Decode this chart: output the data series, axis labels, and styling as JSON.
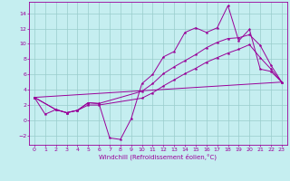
{
  "xlabel": "Windchill (Refroidissement éolien,°C)",
  "xlim": [
    -0.5,
    23.5
  ],
  "ylim": [
    -3.2,
    15.5
  ],
  "xticks": [
    0,
    1,
    2,
    3,
    4,
    5,
    6,
    7,
    8,
    9,
    10,
    11,
    12,
    13,
    14,
    15,
    16,
    17,
    18,
    19,
    20,
    21,
    22,
    23
  ],
  "yticks": [
    -2,
    0,
    2,
    4,
    6,
    8,
    10,
    12,
    14
  ],
  "background_color": "#c5eef0",
  "line_color": "#990099",
  "grid_color": "#99cccc",
  "line1_x": [
    0,
    1,
    2,
    3,
    4,
    5,
    6,
    7,
    8,
    9,
    10,
    11,
    12,
    13,
    14,
    15,
    16,
    17,
    18,
    19,
    20,
    21,
    22,
    23
  ],
  "line1_y": [
    3.0,
    0.8,
    1.4,
    1.0,
    1.3,
    2.3,
    2.2,
    -2.3,
    -2.5,
    0.2,
    4.8,
    6.0,
    8.3,
    9.0,
    11.5,
    12.1,
    11.5,
    12.1,
    15.0,
    10.4,
    11.9,
    6.7,
    6.4,
    5.0
  ],
  "line2_x": [
    0,
    2,
    3,
    4,
    5,
    6,
    10,
    11,
    12,
    13,
    14,
    15,
    16,
    17,
    18,
    19,
    20,
    21,
    22,
    23
  ],
  "line2_y": [
    3.0,
    1.4,
    1.0,
    1.3,
    2.3,
    2.2,
    3.8,
    4.8,
    6.1,
    7.0,
    7.8,
    8.6,
    9.5,
    10.2,
    10.7,
    10.8,
    11.2,
    9.8,
    7.2,
    5.0
  ],
  "line3_x": [
    0,
    2,
    3,
    4,
    5,
    6,
    10,
    11,
    12,
    13,
    14,
    15,
    16,
    17,
    18,
    19,
    20,
    21,
    22,
    23
  ],
  "line3_y": [
    3.0,
    1.4,
    1.0,
    1.3,
    2.0,
    2.0,
    2.9,
    3.6,
    4.5,
    5.3,
    6.1,
    6.8,
    7.6,
    8.2,
    8.8,
    9.3,
    9.9,
    8.2,
    6.7,
    5.0
  ],
  "line4_x": [
    0,
    23
  ],
  "line4_y": [
    3.0,
    5.0
  ]
}
